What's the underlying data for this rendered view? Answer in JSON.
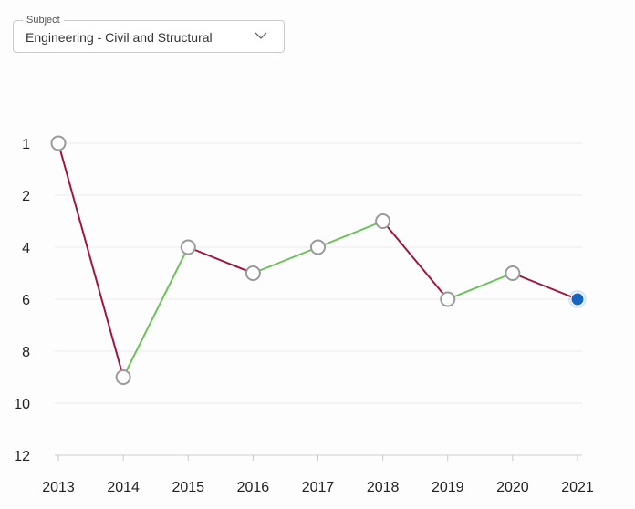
{
  "subject": {
    "legend": "Subject",
    "value": "Engineering - Civil and Structural",
    "icon": "chevron-down-icon"
  },
  "chart_data": {
    "type": "line",
    "x": [
      "2013",
      "2014",
      "2015",
      "2016",
      "2017",
      "2018",
      "2019",
      "2020",
      "2021"
    ],
    "values": [
      1,
      9,
      4,
      5,
      4,
      3,
      6,
      5,
      6
    ],
    "y_ticks": [
      "1",
      "2",
      "4",
      "6",
      "8",
      "10",
      "12"
    ],
    "y_axis": "inverted rank",
    "grid": true,
    "colors": {
      "improve": "#6cc25a",
      "decline": "#a3143c",
      "point_fill": "#ffffff",
      "point_stroke": "#9a9a9a",
      "current_point": "#1565c0",
      "grid": "#ececec"
    }
  }
}
